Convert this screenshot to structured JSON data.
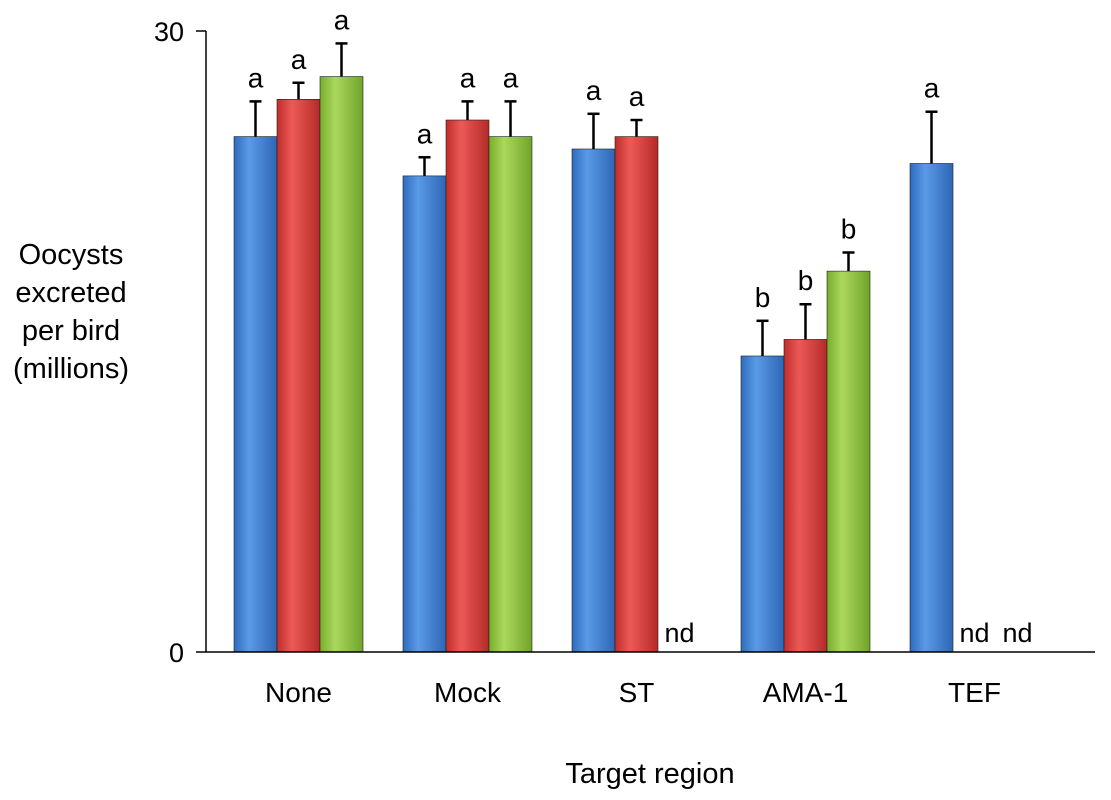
{
  "chart_data": {
    "type": "bar",
    "title": "",
    "ylabel": "Oocysts excreted per bird (millions)",
    "xlabel": "Target region",
    "ylim": [
      0,
      30
    ],
    "yticks": [
      "0",
      "30"
    ],
    "grid": false,
    "legend": "none",
    "categories": [
      "None",
      "Mock",
      "ST",
      "AMA-1",
      "TEF"
    ],
    "series": [
      {
        "color": "#3c7fd4",
        "values": [
          24.9,
          23.0,
          24.3,
          14.3,
          23.6
        ],
        "errors": [
          1.7,
          0.9,
          1.7,
          1.7,
          2.5
        ],
        "letters": [
          "a",
          "a",
          "a",
          "b",
          "a"
        ]
      },
      {
        "color": "#d93c3a",
        "values": [
          26.7,
          25.7,
          24.9,
          15.1,
          null
        ],
        "errors": [
          0.8,
          0.9,
          0.8,
          1.7,
          null
        ],
        "letters": [
          "a",
          "a",
          "a",
          "b",
          "nd"
        ]
      },
      {
        "color": "#8fc63f",
        "values": [
          27.8,
          24.9,
          null,
          18.4,
          null
        ],
        "errors": [
          1.6,
          1.7,
          null,
          0.9,
          null
        ],
        "letters": [
          "a",
          "a",
          "nd",
          "b",
          "nd"
        ]
      }
    ]
  }
}
